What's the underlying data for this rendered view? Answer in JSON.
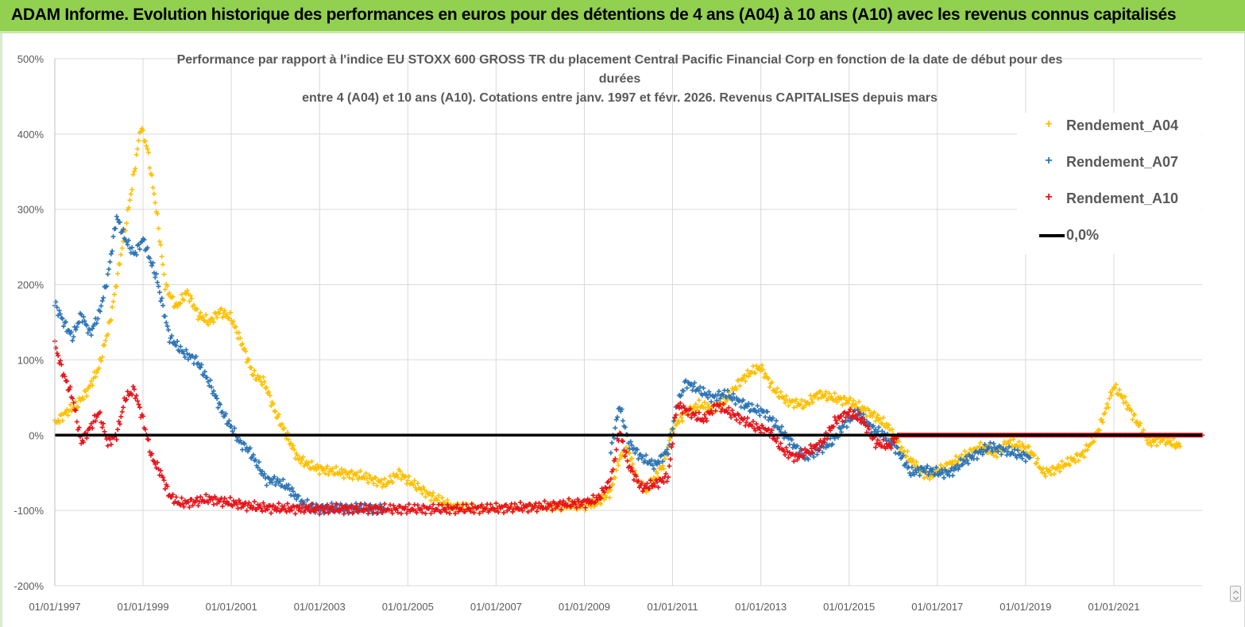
{
  "header": {
    "title": "ADAM Informe. Evolution historique des performances en euros pour des détentions de 4 ans (A04) à 10 ans (A10) avec les revenus connus capitalisés"
  },
  "chart_data": {
    "type": "scatter",
    "title_lines": [
      "Performance par rapport à l'indice EU STOXX 600 GROSS TR  du placement Central Pacific Financial Corp en fonction de la date de début pour des",
      "durées",
      "entre 4 (A04) et 10 ans (A10).  Cotations entre janv. 1997 et févr.  2026. Revenus CAPITALISES depuis mars"
    ],
    "ylim": [
      -200,
      500
    ],
    "y_ticks": [
      500,
      400,
      300,
      200,
      100,
      0,
      -100,
      -200
    ],
    "y_tick_labels": [
      "500%",
      "400%",
      "300%",
      "200%",
      "100%",
      "0%",
      "-100%",
      "-200%"
    ],
    "xlim": [
      1997.0,
      2023.0
    ],
    "x_ticks": [
      1997,
      1999,
      2001,
      2003,
      2005,
      2007,
      2009,
      2011,
      2013,
      2015,
      2017,
      2019,
      2021
    ],
    "x_tick_labels": [
      "01/01/1997",
      "01/01/1999",
      "01/01/2001",
      "01/01/2003",
      "01/01/2005",
      "01/01/2007",
      "01/01/2009",
      "01/01/2011",
      "01/01/2013",
      "01/01/2015",
      "01/01/2017",
      "01/01/2019",
      "01/01/2021"
    ],
    "legend_position": "top-right",
    "series": [
      {
        "name": "Rendement_A04",
        "color": "#ffc000",
        "marker": "+",
        "x": [
          1997.0,
          1997.25,
          1997.5,
          1997.75,
          1998.0,
          1998.25,
          1998.5,
          1998.75,
          1998.95,
          1999.1,
          1999.3,
          1999.5,
          1999.75,
          2000.0,
          2000.25,
          2000.5,
          2000.75,
          2001.0,
          2001.25,
          2001.5,
          2001.75,
          2002.0,
          2002.25,
          2002.5,
          2002.75,
          2003.0,
          2003.5,
          2004.0,
          2004.5,
          2004.8,
          2005.0,
          2005.5,
          2006.0,
          2006.5,
          2007.0,
          2007.5,
          2008.0,
          2008.5,
          2009.0,
          2009.3,
          2009.6,
          2009.8,
          2010.0,
          2010.2,
          2010.4,
          2010.6,
          2010.8,
          2011.0,
          2011.3,
          2011.6,
          2011.9,
          2012.2,
          2012.5,
          2012.8,
          2013.0,
          2013.3,
          2013.6,
          2014.0,
          2014.3,
          2014.6,
          2015.0,
          2015.3,
          2015.6,
          2015.9,
          2016.2,
          2016.5,
          2016.8,
          2017.1,
          2017.4,
          2017.7,
          2018.0,
          2018.3,
          2018.6,
          2018.9,
          2019.1,
          2019.4,
          2019.7,
          2020.0,
          2020.3,
          2020.6,
          2020.8,
          2021.0,
          2021.2,
          2021.5,
          2021.8,
          2022.1,
          2022.5
        ],
        "y": [
          15,
          30,
          40,
          60,
          90,
          150,
          240,
          330,
          410,
          380,
          300,
          200,
          170,
          190,
          160,
          150,
          165,
          155,
          120,
          80,
          70,
          30,
          0,
          -30,
          -40,
          -45,
          -50,
          -55,
          -65,
          -50,
          -60,
          -80,
          -95,
          -97,
          -97,
          -96,
          -95,
          -94,
          -93,
          -90,
          -75,
          -30,
          -20,
          -60,
          -75,
          -55,
          -40,
          10,
          30,
          40,
          35,
          45,
          70,
          85,
          90,
          60,
          45,
          40,
          55,
          50,
          45,
          35,
          25,
          10,
          -20,
          -40,
          -55,
          -45,
          -35,
          -25,
          -15,
          -25,
          -10,
          -15,
          -20,
          -50,
          -45,
          -35,
          -25,
          0,
          30,
          65,
          50,
          20,
          -10,
          -5,
          -15
        ]
      },
      {
        "name": "Rendement_A07",
        "color": "#2e75b6",
        "marker": "+",
        "x": [
          1997.0,
          1997.2,
          1997.4,
          1997.6,
          1997.8,
          1998.0,
          1998.2,
          1998.4,
          1998.6,
          1998.8,
          1999.0,
          1999.3,
          1999.6,
          1999.9,
          2000.2,
          2000.5,
          2000.8,
          2001.0,
          2001.2,
          2001.4,
          2001.6,
          2001.8,
          2002.0,
          2002.3,
          2002.6,
          2002.9,
          2003.5,
          2004.0,
          2004.5,
          2009.6,
          2009.8,
          2010.0,
          2010.3,
          2010.6,
          2010.9,
          2011.1,
          2011.3,
          2011.6,
          2011.9,
          2012.2,
          2012.5,
          2012.8,
          2013.1,
          2013.4,
          2013.7,
          2014.0,
          2014.3,
          2014.6,
          2014.9,
          2015.2,
          2015.5,
          2015.8,
          2016.1,
          2016.4,
          2016.7,
          2017.0,
          2017.3,
          2017.6,
          2017.9,
          2018.2,
          2018.5,
          2018.8,
          2019.1
        ],
        "y": [
          175,
          150,
          130,
          160,
          135,
          160,
          210,
          290,
          260,
          240,
          260,
          210,
          130,
          110,
          100,
          70,
          30,
          10,
          -10,
          -20,
          -40,
          -60,
          -60,
          -70,
          -90,
          -97,
          -97,
          -97,
          -98,
          -20,
          40,
          -10,
          -30,
          -40,
          -20,
          40,
          70,
          60,
          50,
          55,
          45,
          35,
          30,
          10,
          -10,
          -30,
          -20,
          -10,
          15,
          30,
          10,
          0,
          -20,
          -50,
          -45,
          -50,
          -50,
          -35,
          -25,
          -15,
          -20,
          -25,
          -30
        ]
      },
      {
        "name": "Rendement_A10",
        "color": "#e8141b",
        "marker": "+",
        "x": [
          1997.0,
          1997.2,
          1997.4,
          1997.6,
          1997.8,
          1998.0,
          1998.2,
          1998.4,
          1998.6,
          1998.8,
          1999.0,
          1999.2,
          1999.4,
          1999.6,
          1999.8,
          2000.0,
          2000.5,
          2001.0,
          2001.5,
          2002.0,
          2003.0,
          2004.0,
          2005.0,
          2006.0,
          2007.0,
          2008.0,
          2008.5,
          2009.0,
          2009.3,
          2009.6,
          2009.8,
          2010.0,
          2010.3,
          2010.6,
          2010.9,
          2011.1,
          2011.4,
          2011.7,
          2012.0,
          2012.3,
          2012.6,
          2012.9,
          2013.2,
          2013.5,
          2013.8,
          2014.1,
          2014.4,
          2014.7,
          2015.0,
          2015.3,
          2015.6,
          2015.9,
          2016.1,
          2017.0,
          2018.0,
          2019.0,
          2020.0,
          2021.0,
          2022.0,
          2023.0
        ],
        "y": [
          120,
          80,
          50,
          -10,
          10,
          30,
          -10,
          0,
          50,
          60,
          20,
          -30,
          -50,
          -80,
          -90,
          -90,
          -85,
          -90,
          -95,
          -97,
          -98,
          -98,
          -98,
          -98,
          -97,
          -95,
          -92,
          -90,
          -85,
          -60,
          5,
          -40,
          -70,
          -65,
          -55,
          40,
          30,
          20,
          40,
          30,
          20,
          10,
          5,
          -20,
          -30,
          -20,
          -10,
          20,
          30,
          20,
          -10,
          -15,
          0,
          0,
          0,
          0,
          0,
          0,
          0,
          0
        ]
      },
      {
        "name": "0,0%",
        "color": "#000000",
        "marker": "line",
        "x": [
          1997.0,
          2023.0
        ],
        "y": [
          0,
          0
        ]
      }
    ]
  }
}
